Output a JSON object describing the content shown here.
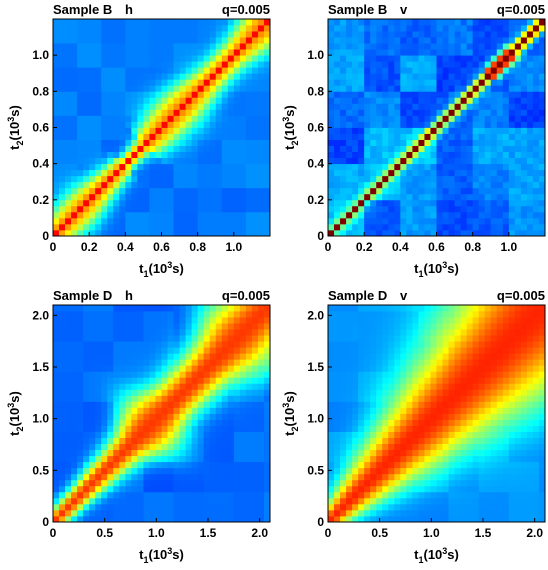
{
  "chart_data": [
    {
      "type": "heatmap",
      "sample": "Sample B",
      "direction": "h",
      "q_label": "q=0.005",
      "xlabel": {
        "base": "t",
        "sub": "1",
        "pre": "(10",
        "sup": "3",
        "post": "s)"
      },
      "ylabel": {
        "base": "t",
        "sub": "2",
        "pre": "(10",
        "sup": "3",
        "post": "s)"
      },
      "xlim": [
        0,
        1.2
      ],
      "ylim": [
        0,
        1.2
      ],
      "xticks": [
        {
          "v": 0,
          "label": "0"
        },
        {
          "v": 0.2,
          "label": "0.2"
        },
        {
          "v": 0.4,
          "label": "0.4"
        },
        {
          "v": 0.6,
          "label": "0.6"
        },
        {
          "v": 0.8,
          "label": "0.8"
        },
        {
          "v": 1.0,
          "label": "1.0"
        }
      ],
      "yticks": [
        {
          "v": 0,
          "label": "0"
        },
        {
          "v": 0.2,
          "label": "0.2"
        },
        {
          "v": 0.4,
          "label": "0.4"
        },
        {
          "v": 0.6,
          "label": "0.6"
        },
        {
          "v": 0.8,
          "label": "0.8"
        },
        {
          "v": 1.0,
          "label": "1.0"
        }
      ],
      "colormap": "jet",
      "pattern": "diagonal ridge of high correlation, moderate width, narrowing near 0.45 and 0.9"
    },
    {
      "type": "heatmap",
      "sample": "Sample B",
      "direction": "v",
      "q_label": "q=0.005",
      "xlabel": {
        "base": "t",
        "sub": "1",
        "pre": "(10",
        "sup": "3",
        "post": "s)"
      },
      "ylabel": {
        "base": "t",
        "sub": "2",
        "pre": "(10",
        "sup": "3",
        "post": "s)"
      },
      "xlim": [
        0,
        1.2
      ],
      "ylim": [
        0,
        1.2
      ],
      "xticks": [
        {
          "v": 0,
          "label": "0"
        },
        {
          "v": 0.2,
          "label": "0.2"
        },
        {
          "v": 0.4,
          "label": "0.4"
        },
        {
          "v": 0.6,
          "label": "0.6"
        },
        {
          "v": 0.8,
          "label": "0.8"
        },
        {
          "v": 1.0,
          "label": "1.0"
        }
      ],
      "yticks": [
        {
          "v": 0,
          "label": "0"
        },
        {
          "v": 0.2,
          "label": "0.2"
        },
        {
          "v": 0.4,
          "label": "0.4"
        },
        {
          "v": 0.6,
          "label": "0.6"
        },
        {
          "v": 0.8,
          "label": "0.8"
        },
        {
          "v": 1.0,
          "label": "1.0"
        }
      ],
      "colormap": "jet",
      "pattern": "very narrow diagonal ridge on a speckled blue background, slightly wider near 0.95"
    },
    {
      "type": "heatmap",
      "sample": "Sample D",
      "direction": "h",
      "q_label": "q=0.005",
      "xlabel": {
        "base": "t",
        "sub": "1",
        "pre": "(10",
        "sup": "3",
        "post": "s)"
      },
      "ylabel": {
        "base": "t",
        "sub": "2",
        "pre": "(10",
        "sup": "3",
        "post": "s)"
      },
      "xlim": [
        0,
        2.1
      ],
      "ylim": [
        0,
        2.1
      ],
      "xticks": [
        {
          "v": 0,
          "label": "0"
        },
        {
          "v": 0.5,
          "label": "0.5"
        },
        {
          "v": 1.0,
          "label": "1.0"
        },
        {
          "v": 1.5,
          "label": "1.5"
        },
        {
          "v": 2.0,
          "label": "2.0"
        }
      ],
      "yticks": [
        {
          "v": 0,
          "label": "0"
        },
        {
          "v": 0.5,
          "label": "0.5"
        },
        {
          "v": 1.0,
          "label": "1.0"
        },
        {
          "v": 1.5,
          "label": "1.5"
        },
        {
          "v": 2.0,
          "label": "2.0"
        }
      ],
      "colormap": "jet",
      "pattern": "diagonal band widening with time, with bulges around 0.9 and 1.7"
    },
    {
      "type": "heatmap",
      "sample": "Sample D",
      "direction": "v",
      "q_label": "q=0.005",
      "xlabel": {
        "base": "t",
        "sub": "1",
        "pre": "(10",
        "sup": "3",
        "post": "s)"
      },
      "ylabel": {
        "base": "t",
        "sub": "2",
        "pre": "(10",
        "sup": "3",
        "post": "s)"
      },
      "xlim": [
        0,
        2.1
      ],
      "ylim": [
        0,
        2.1
      ],
      "xticks": [
        {
          "v": 0,
          "label": "0"
        },
        {
          "v": 0.5,
          "label": "0.5"
        },
        {
          "v": 1.0,
          "label": "1.0"
        },
        {
          "v": 1.5,
          "label": "1.5"
        },
        {
          "v": 2.0,
          "label": "2.0"
        }
      ],
      "yticks": [
        {
          "v": 0,
          "label": "0"
        },
        {
          "v": 0.5,
          "label": "0.5"
        },
        {
          "v": 1.0,
          "label": "1.0"
        },
        {
          "v": 1.5,
          "label": "1.5"
        },
        {
          "v": 2.0,
          "label": "2.0"
        }
      ],
      "colormap": "jet",
      "pattern": "broad diagonal band that widens strongly with time, red fills most of the upper right"
    }
  ]
}
